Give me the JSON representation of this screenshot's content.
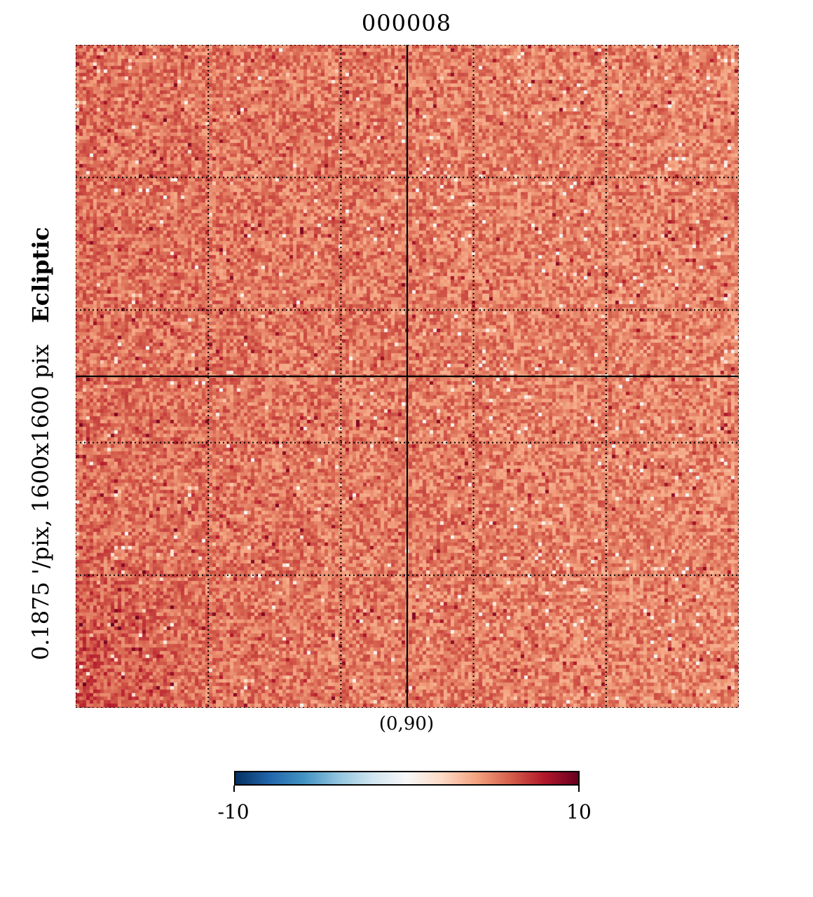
{
  "title": "000008",
  "side_label": {
    "coord_system": "Ecliptic",
    "resolution": "0.1875 '/pix,   1600x1600 pix"
  },
  "center_label": "(0,90)",
  "colorbar": {
    "min_label": "-10",
    "max_label": "10",
    "colormap": "RdBu_r",
    "stops": [
      "#053061",
      "#2166ac",
      "#4393c3",
      "#92c5de",
      "#d1e5f0",
      "#f7f7f7",
      "#fddbc7",
      "#f4a582",
      "#d6604d",
      "#b2182b",
      "#67001f"
    ]
  },
  "chart_data": {
    "type": "heatmap",
    "title": "000008",
    "center": "(0,90)",
    "coord": "Ecliptic",
    "resolution_arcmin_per_pix": 0.1875,
    "size_pix": [
      1600,
      1600
    ],
    "vmin": -10,
    "vmax": 10,
    "typical_value": 5.5,
    "graticule": {
      "grid": true,
      "dotted_divisions": 5,
      "solid_center_cross": true
    }
  }
}
